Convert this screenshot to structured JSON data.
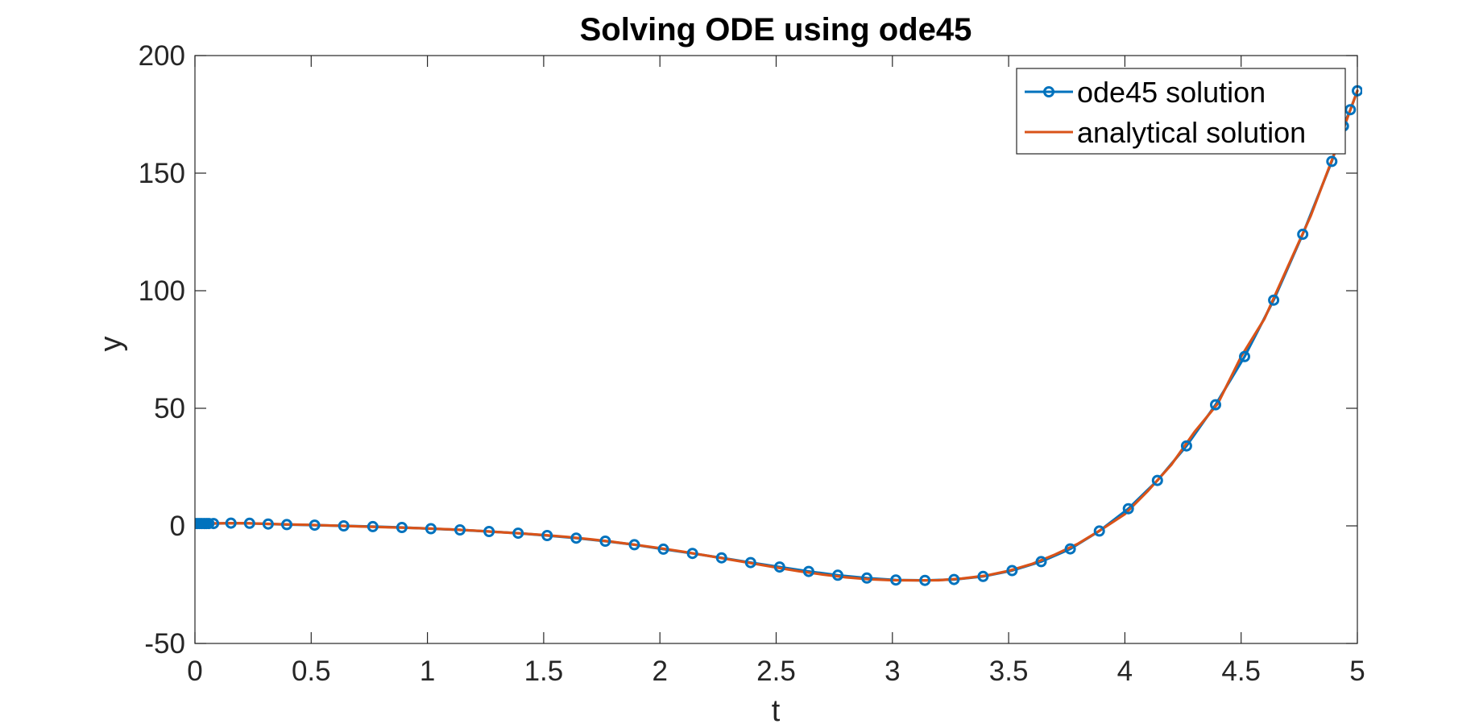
{
  "chart_data": {
    "type": "line",
    "title": "Solving ODE using ode45",
    "xlabel": "t",
    "ylabel": "y",
    "xlim": [
      0,
      5
    ],
    "ylim": [
      -50,
      200
    ],
    "xticks": [
      0,
      0.5,
      1,
      1.5,
      2,
      2.5,
      3,
      3.5,
      4,
      4.5,
      5
    ],
    "xtick_labels": [
      "0",
      "0.5",
      "1",
      "1.5",
      "2",
      "2.5",
      "3",
      "3.5",
      "4",
      "4.5",
      "5"
    ],
    "yticks": [
      -50,
      0,
      50,
      100,
      150,
      200
    ],
    "ytick_labels": [
      "-50",
      "0",
      "50",
      "100",
      "150",
      "200"
    ],
    "grid": false,
    "legend_position": "top-right",
    "series": [
      {
        "name": "ode45 solution",
        "color": "#0072BD",
        "marker": "circle",
        "x": [
          0,
          0.01,
          0.02,
          0.03,
          0.04,
          0.05,
          0.06,
          0.08,
          0.155,
          0.235,
          0.315,
          0.395,
          0.515,
          0.64,
          0.765,
          0.89,
          1.015,
          1.14,
          1.265,
          1.39,
          1.515,
          1.64,
          1.765,
          1.89,
          2.015,
          2.14,
          2.265,
          2.39,
          2.515,
          2.64,
          2.765,
          2.89,
          3.015,
          3.14,
          3.265,
          3.39,
          3.515,
          3.64,
          3.765,
          3.89,
          4.015,
          4.14,
          4.265,
          4.39,
          4.515,
          4.64,
          4.765,
          4.89,
          4.94,
          4.97,
          5.0
        ],
        "y": [
          1,
          1,
          1,
          1,
          1,
          1,
          1,
          1,
          1.15,
          1.1,
          0.8,
          0.55,
          0.3,
          0,
          -0.3,
          -0.7,
          -1.2,
          -1.7,
          -2.4,
          -3.1,
          -4.1,
          -5.2,
          -6.5,
          -8,
          -9.9,
          -11.7,
          -13.6,
          -15.6,
          -17.5,
          -19.4,
          -21,
          -22.2,
          -23,
          -23.2,
          -22.8,
          -21.5,
          -19,
          -15.2,
          -9.8,
          -2.2,
          7.3,
          19.3,
          34,
          51.5,
          72,
          96,
          124,
          155,
          170,
          177,
          185
        ]
      },
      {
        "name": "analytical solution",
        "color": "#D95319",
        "marker": "none",
        "x": [
          0,
          0.1,
          0.2,
          0.3,
          0.4,
          0.5,
          0.6,
          0.7,
          0.8,
          0.9,
          1.0,
          1.1,
          1.2,
          1.3,
          1.4,
          1.5,
          1.6,
          1.7,
          1.8,
          1.9,
          2.0,
          2.1,
          2.2,
          2.3,
          2.4,
          2.5,
          2.6,
          2.7,
          2.8,
          2.9,
          3.0,
          3.1,
          3.2,
          3.3,
          3.4,
          3.5,
          3.6,
          3.7,
          3.8,
          3.9,
          4.0,
          4.1,
          4.2,
          4.3,
          4.4,
          4.5,
          4.6,
          4.7,
          4.8,
          4.9,
          5.0
        ],
        "y": [
          1,
          1.1,
          1.15,
          0.9,
          0.6,
          0.4,
          0.1,
          -0.2,
          -0.5,
          -0.8,
          -1.1,
          -1.5,
          -2.0,
          -2.6,
          -3.2,
          -3.9,
          -4.7,
          -5.7,
          -6.8,
          -8.1,
          -9.5,
          -11.0,
          -12.6,
          -14.3,
          -16.0,
          -17.7,
          -19.3,
          -20.7,
          -21.9,
          -22.7,
          -23.1,
          -23.2,
          -23.1,
          -22.4,
          -21.2,
          -19.1,
          -16.2,
          -12.2,
          -7.5,
          -1.5,
          5.0,
          15.0,
          26.0,
          40.0,
          52.0,
          72.0,
          88.0,
          110.0,
          132.0,
          158.0,
          185.0
        ]
      }
    ]
  }
}
